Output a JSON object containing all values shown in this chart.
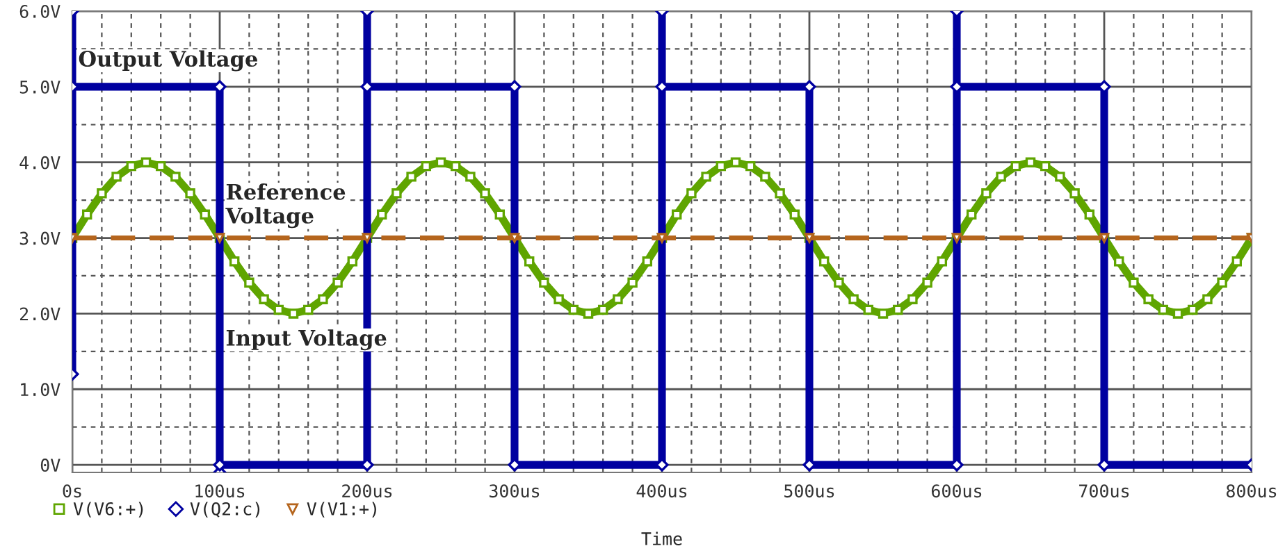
{
  "chart_data": {
    "type": "line",
    "xlabel": "Time",
    "x": [
      0,
      10,
      20,
      30,
      40,
      50,
      60,
      70,
      80,
      90,
      100,
      110,
      120,
      130,
      140,
      150,
      160,
      170,
      180,
      190,
      200,
      210,
      220,
      230,
      240,
      250,
      260,
      270,
      280,
      290,
      300,
      310,
      320,
      330,
      340,
      350,
      360,
      370,
      380,
      390,
      400,
      410,
      420,
      430,
      440,
      450,
      460,
      470,
      480,
      490,
      500,
      510,
      520,
      530,
      540,
      550,
      560,
      570,
      580,
      590,
      600,
      610,
      620,
      630,
      640,
      650,
      660,
      670,
      680,
      690,
      700,
      710,
      720,
      730,
      740,
      750,
      760,
      770,
      780,
      790,
      800
    ],
    "series": [
      {
        "name": "V(V6:+)",
        "color": "#5fa500",
        "marker": "square",
        "line_style": "solid",
        "values": [
          3.0,
          3.31,
          3.59,
          3.81,
          3.95,
          4.0,
          3.95,
          3.81,
          3.59,
          3.31,
          3.0,
          2.69,
          2.41,
          2.19,
          2.05,
          2.0,
          2.05,
          2.19,
          2.41,
          2.69,
          3.0,
          3.31,
          3.59,
          3.81,
          3.95,
          4.0,
          3.95,
          3.81,
          3.59,
          3.31,
          3.0,
          2.69,
          2.41,
          2.19,
          2.05,
          2.0,
          2.05,
          2.19,
          2.41,
          2.69,
          3.0,
          3.31,
          3.59,
          3.81,
          3.95,
          4.0,
          3.95,
          3.81,
          3.59,
          3.31,
          3.0,
          2.69,
          2.41,
          2.19,
          2.05,
          2.0,
          2.05,
          2.19,
          2.41,
          2.69,
          3.0,
          3.31,
          3.59,
          3.81,
          3.95,
          4.0,
          3.95,
          3.81,
          3.59,
          3.31,
          3.0,
          2.69,
          2.41,
          2.19,
          2.05,
          2.0,
          2.05,
          2.19,
          2.41,
          2.69,
          3.0
        ]
      },
      {
        "name": "V(Q2:c)",
        "color": "#0000a0",
        "marker": "diamond",
        "line_style": "solid",
        "x": [
          0,
          0,
          0,
          100,
          100,
          100,
          200,
          200,
          200,
          300,
          300,
          400,
          400,
          400,
          500,
          500,
          600,
          600,
          600,
          700,
          700,
          800
        ],
        "values": [
          1.2,
          6.0,
          5.0,
          5.0,
          -0.1,
          0.0,
          0.0,
          6.0,
          5.0,
          5.0,
          0.0,
          0.0,
          6.0,
          5.0,
          5.0,
          0.0,
          0.0,
          6.0,
          5.0,
          5.0,
          0.0,
          0.0
        ]
      },
      {
        "name": "V(V1:+)",
        "color": "#b5651d",
        "marker": "triangle",
        "line_style": "dashed",
        "x": [
          0,
          100,
          200,
          300,
          400,
          500,
          600,
          700,
          800
        ],
        "values": [
          3.0,
          3.0,
          3.0,
          3.0,
          3.0,
          3.0,
          3.0,
          3.0,
          3.0
        ]
      }
    ],
    "xlim": [
      0,
      800
    ],
    "ylim": [
      -0.1,
      6.0
    ],
    "xticks": [
      {
        "value": 0,
        "label": "0s"
      },
      {
        "value": 100,
        "label": "100us"
      },
      {
        "value": 200,
        "label": "200us"
      },
      {
        "value": 300,
        "label": "300us"
      },
      {
        "value": 400,
        "label": "400us"
      },
      {
        "value": 500,
        "label": "500us"
      },
      {
        "value": 600,
        "label": "600us"
      },
      {
        "value": 700,
        "label": "700us"
      },
      {
        "value": 800,
        "label": "800us"
      }
    ],
    "yticks": [
      {
        "value": 0,
        "label": "0V"
      },
      {
        "value": 1,
        "label": "1.0V"
      },
      {
        "value": 2,
        "label": "2.0V"
      },
      {
        "value": 3,
        "label": "3.0V"
      },
      {
        "value": 4,
        "label": "4.0V"
      },
      {
        "value": 5,
        "label": "5.0V"
      },
      {
        "value": 6,
        "label": "6.0V"
      }
    ],
    "grid": true,
    "legend": "bottom left",
    "annotations": [
      "Output Voltage",
      "Reference Voltage",
      "Input Voltage"
    ]
  }
}
